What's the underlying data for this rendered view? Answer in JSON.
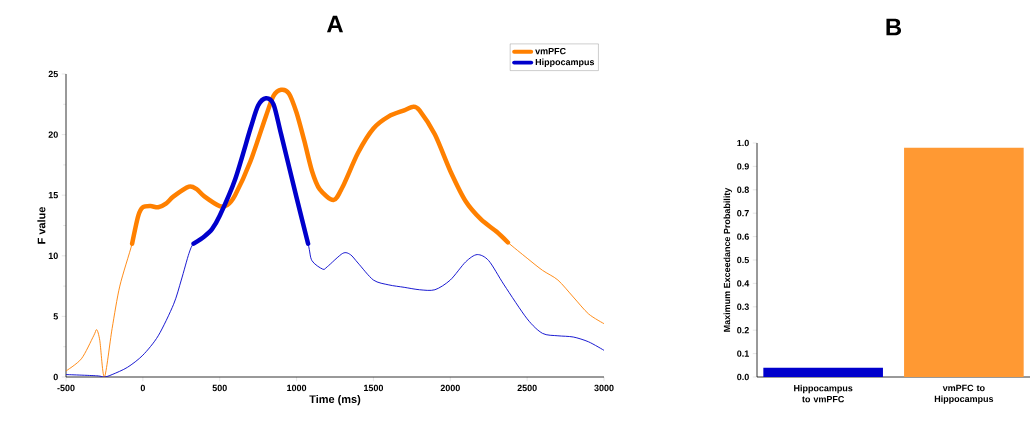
{
  "chart_data": [
    {
      "type": "line",
      "title": "A",
      "xlabel": "Time (ms)",
      "ylabel": "F value",
      "xlim": [
        -500,
        3000
      ],
      "ylim": [
        0,
        25
      ],
      "xticks": [
        -500,
        0,
        500,
        1000,
        1500,
        2000,
        2500,
        3000
      ],
      "yticks": [
        0,
        5,
        10,
        15,
        20,
        25
      ],
      "legend": "top right",
      "grid": false,
      "marker": "none",
      "line_style": "solid",
      "series": [
        {
          "color": "#ff8000",
          "x": [
            -500,
            -400,
            -320,
            -300,
            -280,
            -250,
            -200,
            -150,
            -70,
            -30,
            0,
            50,
            100,
            150,
            200,
            300,
            350,
            400,
            500,
            550,
            600,
            700,
            800,
            850,
            900,
            950,
            1000,
            1050,
            1100,
            1150,
            1240,
            1300,
            1400,
            1500,
            1600,
            1700,
            1760,
            1800,
            1900,
            2000,
            2100,
            2200,
            2300,
            2375,
            2500,
            2600,
            2700,
            2800,
            2900,
            3000
          ],
          "values": [
            0.5,
            1.5,
            3.4,
            3.9,
            3.0,
            0,
            4,
            7.5,
            11,
            13.3,
            14,
            14.1,
            14,
            14.3,
            14.9,
            15.7,
            15.5,
            14.9,
            14.1,
            14.2,
            15,
            17.8,
            21.5,
            23.2,
            23.7,
            23.4,
            21.8,
            19.5,
            17,
            15.5,
            14.6,
            15.7,
            18.5,
            20.5,
            21.5,
            22,
            22.3,
            22,
            20,
            17,
            14.5,
            13,
            12,
            11.1,
            9.8,
            8.8,
            8,
            6.6,
            5.2,
            4.4
          ]
        },
        {
          "color": "#0000cc",
          "x": [
            -500,
            -300,
            -250,
            -200,
            -100,
            0,
            100,
            200,
            250,
            300,
            330,
            400,
            450,
            500,
            600,
            700,
            750,
            800,
            850,
            900,
            1000,
            1075,
            1100,
            1170,
            1200,
            1300,
            1350,
            1400,
            1500,
            1600,
            1700,
            1800,
            1900,
            2000,
            2100,
            2175,
            2250,
            2350,
            2500,
            2600,
            2700,
            2800,
            2900,
            3000
          ],
          "values": [
            0.2,
            0.1,
            0,
            0.2,
            0.8,
            1.8,
            3.4,
            6.0,
            8,
            10.2,
            11,
            11.6,
            12.2,
            13.3,
            16.3,
            20.5,
            22.4,
            23,
            22.5,
            20,
            14.8,
            11,
            9.6,
            8.9,
            9.1,
            10.2,
            10.1,
            9.4,
            8.0,
            7.6,
            7.4,
            7.2,
            7.2,
            8.0,
            9.5,
            10.1,
            9.6,
            7.6,
            4.8,
            3.6,
            3.4,
            3.3,
            2.9,
            2.2
          ]
        },
        {
          "name": "vmPFC",
          "color": "#ff8000",
          "x": [
            -70,
            -30,
            0,
            50,
            100,
            150,
            200,
            300,
            350,
            400,
            500,
            550,
            600,
            700,
            800,
            850,
            900,
            950,
            1000,
            1050,
            1100,
            1150,
            1240,
            1300,
            1400,
            1500,
            1600,
            1700,
            1760,
            1800,
            1900,
            2000,
            2100,
            2200,
            2300,
            2375
          ],
          "values": [
            11,
            13.3,
            14,
            14.1,
            14,
            14.3,
            14.9,
            15.7,
            15.5,
            14.9,
            14.1,
            14.2,
            15,
            17.8,
            21.5,
            23.2,
            23.7,
            23.4,
            21.8,
            19.5,
            17,
            15.5,
            14.6,
            15.7,
            18.5,
            20.5,
            21.5,
            22,
            22.3,
            22,
            20,
            17,
            14.5,
            13,
            12,
            11.1
          ]
        },
        {
          "name": "Hippocampus",
          "color": "#0000cc",
          "x": [
            330,
            400,
            450,
            500,
            600,
            700,
            750,
            800,
            850,
            900,
            1000,
            1075
          ],
          "values": [
            11,
            11.6,
            12.2,
            13.3,
            16.3,
            20.5,
            22.4,
            23,
            22.5,
            20,
            14.8,
            11
          ]
        }
      ]
    },
    {
      "type": "bar",
      "title": "B",
      "ylabel": "Maximum Exceedance Probability",
      "categories": [
        "Hippocampus to vmPFC",
        "vmPFC to Hippocampus"
      ],
      "values": [
        0.04,
        0.98
      ],
      "colors": [
        "#0000cc",
        "#ff9933"
      ],
      "ylim": [
        0,
        1
      ],
      "grid": false,
      "legend": false,
      "yticks": [
        {
          "value": 0,
          "label": "0.0"
        },
        0.1,
        0.2,
        0.3,
        0.4,
        0.5,
        0.6,
        0.7,
        0.8,
        0.9,
        {
          "value": 1,
          "label": "1.0"
        }
      ]
    }
  ]
}
